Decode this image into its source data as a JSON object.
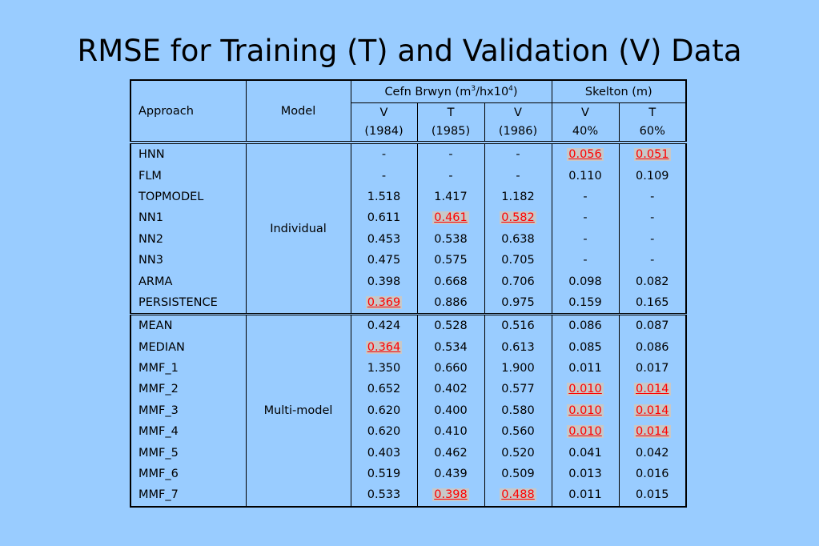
{
  "title": "RMSE for Training (T) and Validation (V) Data",
  "headers": {
    "approach": "Approach",
    "model": "Model",
    "group1": "Cefn Brwyn (m3/hx104)",
    "group1_parts": [
      "Cefn Brwyn (m",
      "3",
      "/hx10",
      "4",
      ")"
    ],
    "group2": "Skelton (m)",
    "cols": [
      {
        "top": "V",
        "bottom": "(1984)"
      },
      {
        "top": "T",
        "bottom": "(1985)"
      },
      {
        "top": "V",
        "bottom": "(1986)"
      },
      {
        "top": "V",
        "bottom": "40%"
      },
      {
        "top": "T",
        "bottom": "60%"
      }
    ]
  },
  "groups": [
    {
      "model": "Individual",
      "rows": [
        {
          "approach": "HNN",
          "values": [
            "-",
            "-",
            "-",
            "0.056",
            "0.051"
          ],
          "highlight": [
            false,
            false,
            false,
            true,
            true
          ]
        },
        {
          "approach": "FLM",
          "values": [
            "-",
            "-",
            "-",
            "0.110",
            "0.109"
          ],
          "highlight": [
            false,
            false,
            false,
            false,
            false
          ]
        },
        {
          "approach": "TOPMODEL",
          "values": [
            "1.518",
            "1.417",
            "1.182",
            "-",
            "-"
          ],
          "highlight": [
            false,
            false,
            false,
            false,
            false
          ]
        },
        {
          "approach": "NN1",
          "values": [
            "0.611",
            "0.461",
            "0.582",
            "-",
            "-"
          ],
          "highlight": [
            false,
            true,
            true,
            false,
            false
          ]
        },
        {
          "approach": "NN2",
          "values": [
            "0.453",
            "0.538",
            "0.638",
            "-",
            "-"
          ],
          "highlight": [
            false,
            false,
            false,
            false,
            false
          ]
        },
        {
          "approach": "NN3",
          "values": [
            "0.475",
            "0.575",
            "0.705",
            "-",
            "-"
          ],
          "highlight": [
            false,
            false,
            false,
            false,
            false
          ]
        },
        {
          "approach": "ARMA",
          "values": [
            "0.398",
            "0.668",
            "0.706",
            "0.098",
            "0.082"
          ],
          "highlight": [
            false,
            false,
            false,
            false,
            false
          ]
        },
        {
          "approach": "PERSISTENCE",
          "values": [
            "0.369",
            "0.886",
            "0.975",
            "0.159",
            "0.165"
          ],
          "highlight": [
            true,
            false,
            false,
            false,
            false
          ]
        }
      ]
    },
    {
      "model": "Multi-model",
      "rows": [
        {
          "approach": "MEAN",
          "values": [
            "0.424",
            "0.528",
            "0.516",
            "0.086",
            "0.087"
          ],
          "highlight": [
            false,
            false,
            false,
            false,
            false
          ]
        },
        {
          "approach": "MEDIAN",
          "values": [
            "0.364",
            "0.534",
            "0.613",
            "0.085",
            "0.086"
          ],
          "highlight": [
            true,
            false,
            false,
            false,
            false
          ]
        },
        {
          "approach": "MMF_1",
          "values": [
            "1.350",
            "0.660",
            "1.900",
            "0.011",
            "0.017"
          ],
          "highlight": [
            false,
            false,
            false,
            false,
            false
          ]
        },
        {
          "approach": "MMF_2",
          "values": [
            "0.652",
            "0.402",
            "0.577",
            "0.010",
            "0.014"
          ],
          "highlight": [
            false,
            false,
            false,
            true,
            true
          ]
        },
        {
          "approach": "MMF_3",
          "values": [
            "0.620",
            "0.400",
            "0.580",
            "0.010",
            "0.014"
          ],
          "highlight": [
            false,
            false,
            false,
            true,
            true
          ]
        },
        {
          "approach": "MMF_4",
          "values": [
            "0.620",
            "0.410",
            "0.560",
            "0.010",
            "0.014"
          ],
          "highlight": [
            false,
            false,
            false,
            true,
            true
          ]
        },
        {
          "approach": "MMF_5",
          "values": [
            "0.403",
            "0.462",
            "0.520",
            "0.041",
            "0.042"
          ],
          "highlight": [
            false,
            false,
            false,
            false,
            false
          ]
        },
        {
          "approach": "MMF_6",
          "values": [
            "0.519",
            "0.439",
            "0.509",
            "0.013",
            "0.016"
          ],
          "highlight": [
            false,
            false,
            false,
            false,
            false
          ]
        },
        {
          "approach": "MMF_7",
          "values": [
            "0.533",
            "0.398",
            "0.488",
            "0.011",
            "0.015"
          ],
          "highlight": [
            false,
            true,
            true,
            false,
            false
          ]
        }
      ]
    }
  ],
  "colors": {
    "background": "#99ccff",
    "highlight_text": "#ff0000",
    "highlight_bg": "#c8c8c8"
  }
}
